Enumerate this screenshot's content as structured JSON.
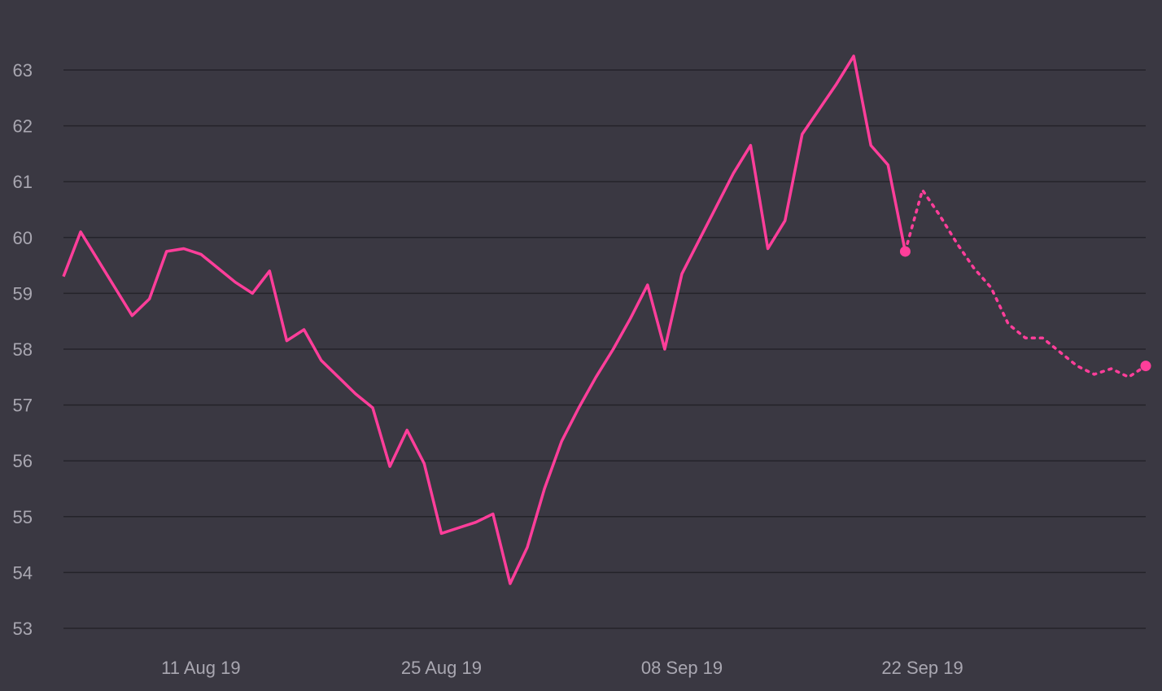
{
  "chart_data": {
    "type": "line",
    "title": "",
    "xlabel": "",
    "ylabel": "",
    "ylim": [
      53,
      63
    ],
    "yticks": [
      "53",
      "54",
      "55",
      "56",
      "57",
      "58",
      "59",
      "60",
      "61",
      "62",
      "63"
    ],
    "xticks": [
      {
        "date": "2019-08-11",
        "label": "11 Aug 19"
      },
      {
        "date": "2019-08-25",
        "label": "25 Aug 19"
      },
      {
        "date": "2019-09-08",
        "label": "08 Sep 19"
      },
      {
        "date": "2019-09-22",
        "label": "22 Sep 19"
      }
    ],
    "xrange": [
      "2019-08-03",
      "2019-10-05"
    ],
    "grid": true,
    "legend": "none",
    "line_color": "#ff3e9a",
    "series": [
      {
        "style": "solid",
        "end_marker": true,
        "points": [
          [
            "2019-08-03",
            59.3
          ],
          [
            "2019-08-04",
            60.1
          ],
          [
            "2019-08-05",
            59.6
          ],
          [
            "2019-08-06",
            59.1
          ],
          [
            "2019-08-07",
            58.6
          ],
          [
            "2019-08-08",
            58.9
          ],
          [
            "2019-08-09",
            59.75
          ],
          [
            "2019-08-10",
            59.8
          ],
          [
            "2019-08-11",
            59.7
          ],
          [
            "2019-08-12",
            59.45
          ],
          [
            "2019-08-13",
            59.2
          ],
          [
            "2019-08-14",
            59.0
          ],
          [
            "2019-08-15",
            59.4
          ],
          [
            "2019-08-16",
            58.15
          ],
          [
            "2019-08-17",
            58.35
          ],
          [
            "2019-08-18",
            57.8
          ],
          [
            "2019-08-19",
            57.5
          ],
          [
            "2019-08-20",
            57.2
          ],
          [
            "2019-08-21",
            56.95
          ],
          [
            "2019-08-22",
            55.9
          ],
          [
            "2019-08-23",
            56.55
          ],
          [
            "2019-08-24",
            55.95
          ],
          [
            "2019-08-25",
            54.7
          ],
          [
            "2019-08-26",
            54.8
          ],
          [
            "2019-08-27",
            54.9
          ],
          [
            "2019-08-28",
            55.05
          ],
          [
            "2019-08-29",
            53.8
          ],
          [
            "2019-08-30",
            54.45
          ],
          [
            "2019-08-31",
            55.5
          ],
          [
            "2019-09-01",
            56.35
          ],
          [
            "2019-09-02",
            56.95
          ],
          [
            "2019-09-03",
            57.5
          ],
          [
            "2019-09-04",
            58.0
          ],
          [
            "2019-09-05",
            58.55
          ],
          [
            "2019-09-06",
            59.15
          ],
          [
            "2019-09-07",
            58.0
          ],
          [
            "2019-09-08",
            59.35
          ],
          [
            "2019-09-09",
            59.95
          ],
          [
            "2019-09-10",
            60.55
          ],
          [
            "2019-09-11",
            61.15
          ],
          [
            "2019-09-12",
            61.65
          ],
          [
            "2019-09-13",
            59.8
          ],
          [
            "2019-09-14",
            60.3
          ],
          [
            "2019-09-15",
            61.85
          ],
          [
            "2019-09-16",
            62.3
          ],
          [
            "2019-09-17",
            62.75
          ],
          [
            "2019-09-18",
            63.25
          ],
          [
            "2019-09-19",
            61.65
          ],
          [
            "2019-09-20",
            61.3
          ],
          [
            "2019-09-21",
            59.75
          ]
        ]
      },
      {
        "style": "dotted",
        "end_marker": true,
        "points": [
          [
            "2019-09-21",
            59.75
          ],
          [
            "2019-09-22",
            60.85
          ],
          [
            "2019-09-23",
            60.4
          ],
          [
            "2019-09-24",
            59.9
          ],
          [
            "2019-09-25",
            59.45
          ],
          [
            "2019-09-26",
            59.1
          ],
          [
            "2019-09-27",
            58.45
          ],
          [
            "2019-09-28",
            58.2
          ],
          [
            "2019-09-29",
            58.2
          ],
          [
            "2019-09-30",
            57.95
          ],
          [
            "2019-10-01",
            57.7
          ],
          [
            "2019-10-02",
            57.55
          ],
          [
            "2019-10-03",
            57.65
          ],
          [
            "2019-10-04",
            57.5
          ],
          [
            "2019-10-05",
            57.7
          ]
        ]
      }
    ]
  }
}
